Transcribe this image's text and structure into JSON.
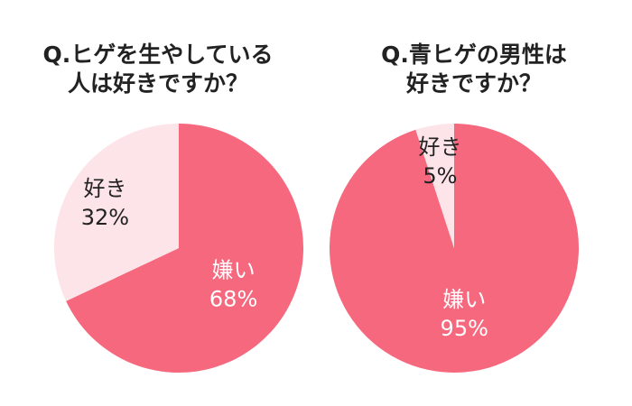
{
  "colors": {
    "dislike": "#f5687e",
    "like": "#fde4e8",
    "dark_text": "#222222",
    "light_text": "#ffffff"
  },
  "chart_data": [
    {
      "type": "pie",
      "title": [
        "Q.ヒゲを生やしている",
        "人は好きですか？"
      ],
      "slices": [
        {
          "label": "嫌い",
          "value": 68,
          "value_label": "68%"
        },
        {
          "label": "好き",
          "value": 32,
          "value_label": "32%"
        }
      ]
    },
    {
      "type": "pie",
      "title": [
        "Q.青ヒゲの男性は",
        "好きですか？"
      ],
      "slices": [
        {
          "label": "嫌い",
          "value": 95,
          "value_label": "95%"
        },
        {
          "label": "好き",
          "value": 5,
          "value_label": "5%"
        }
      ]
    }
  ]
}
